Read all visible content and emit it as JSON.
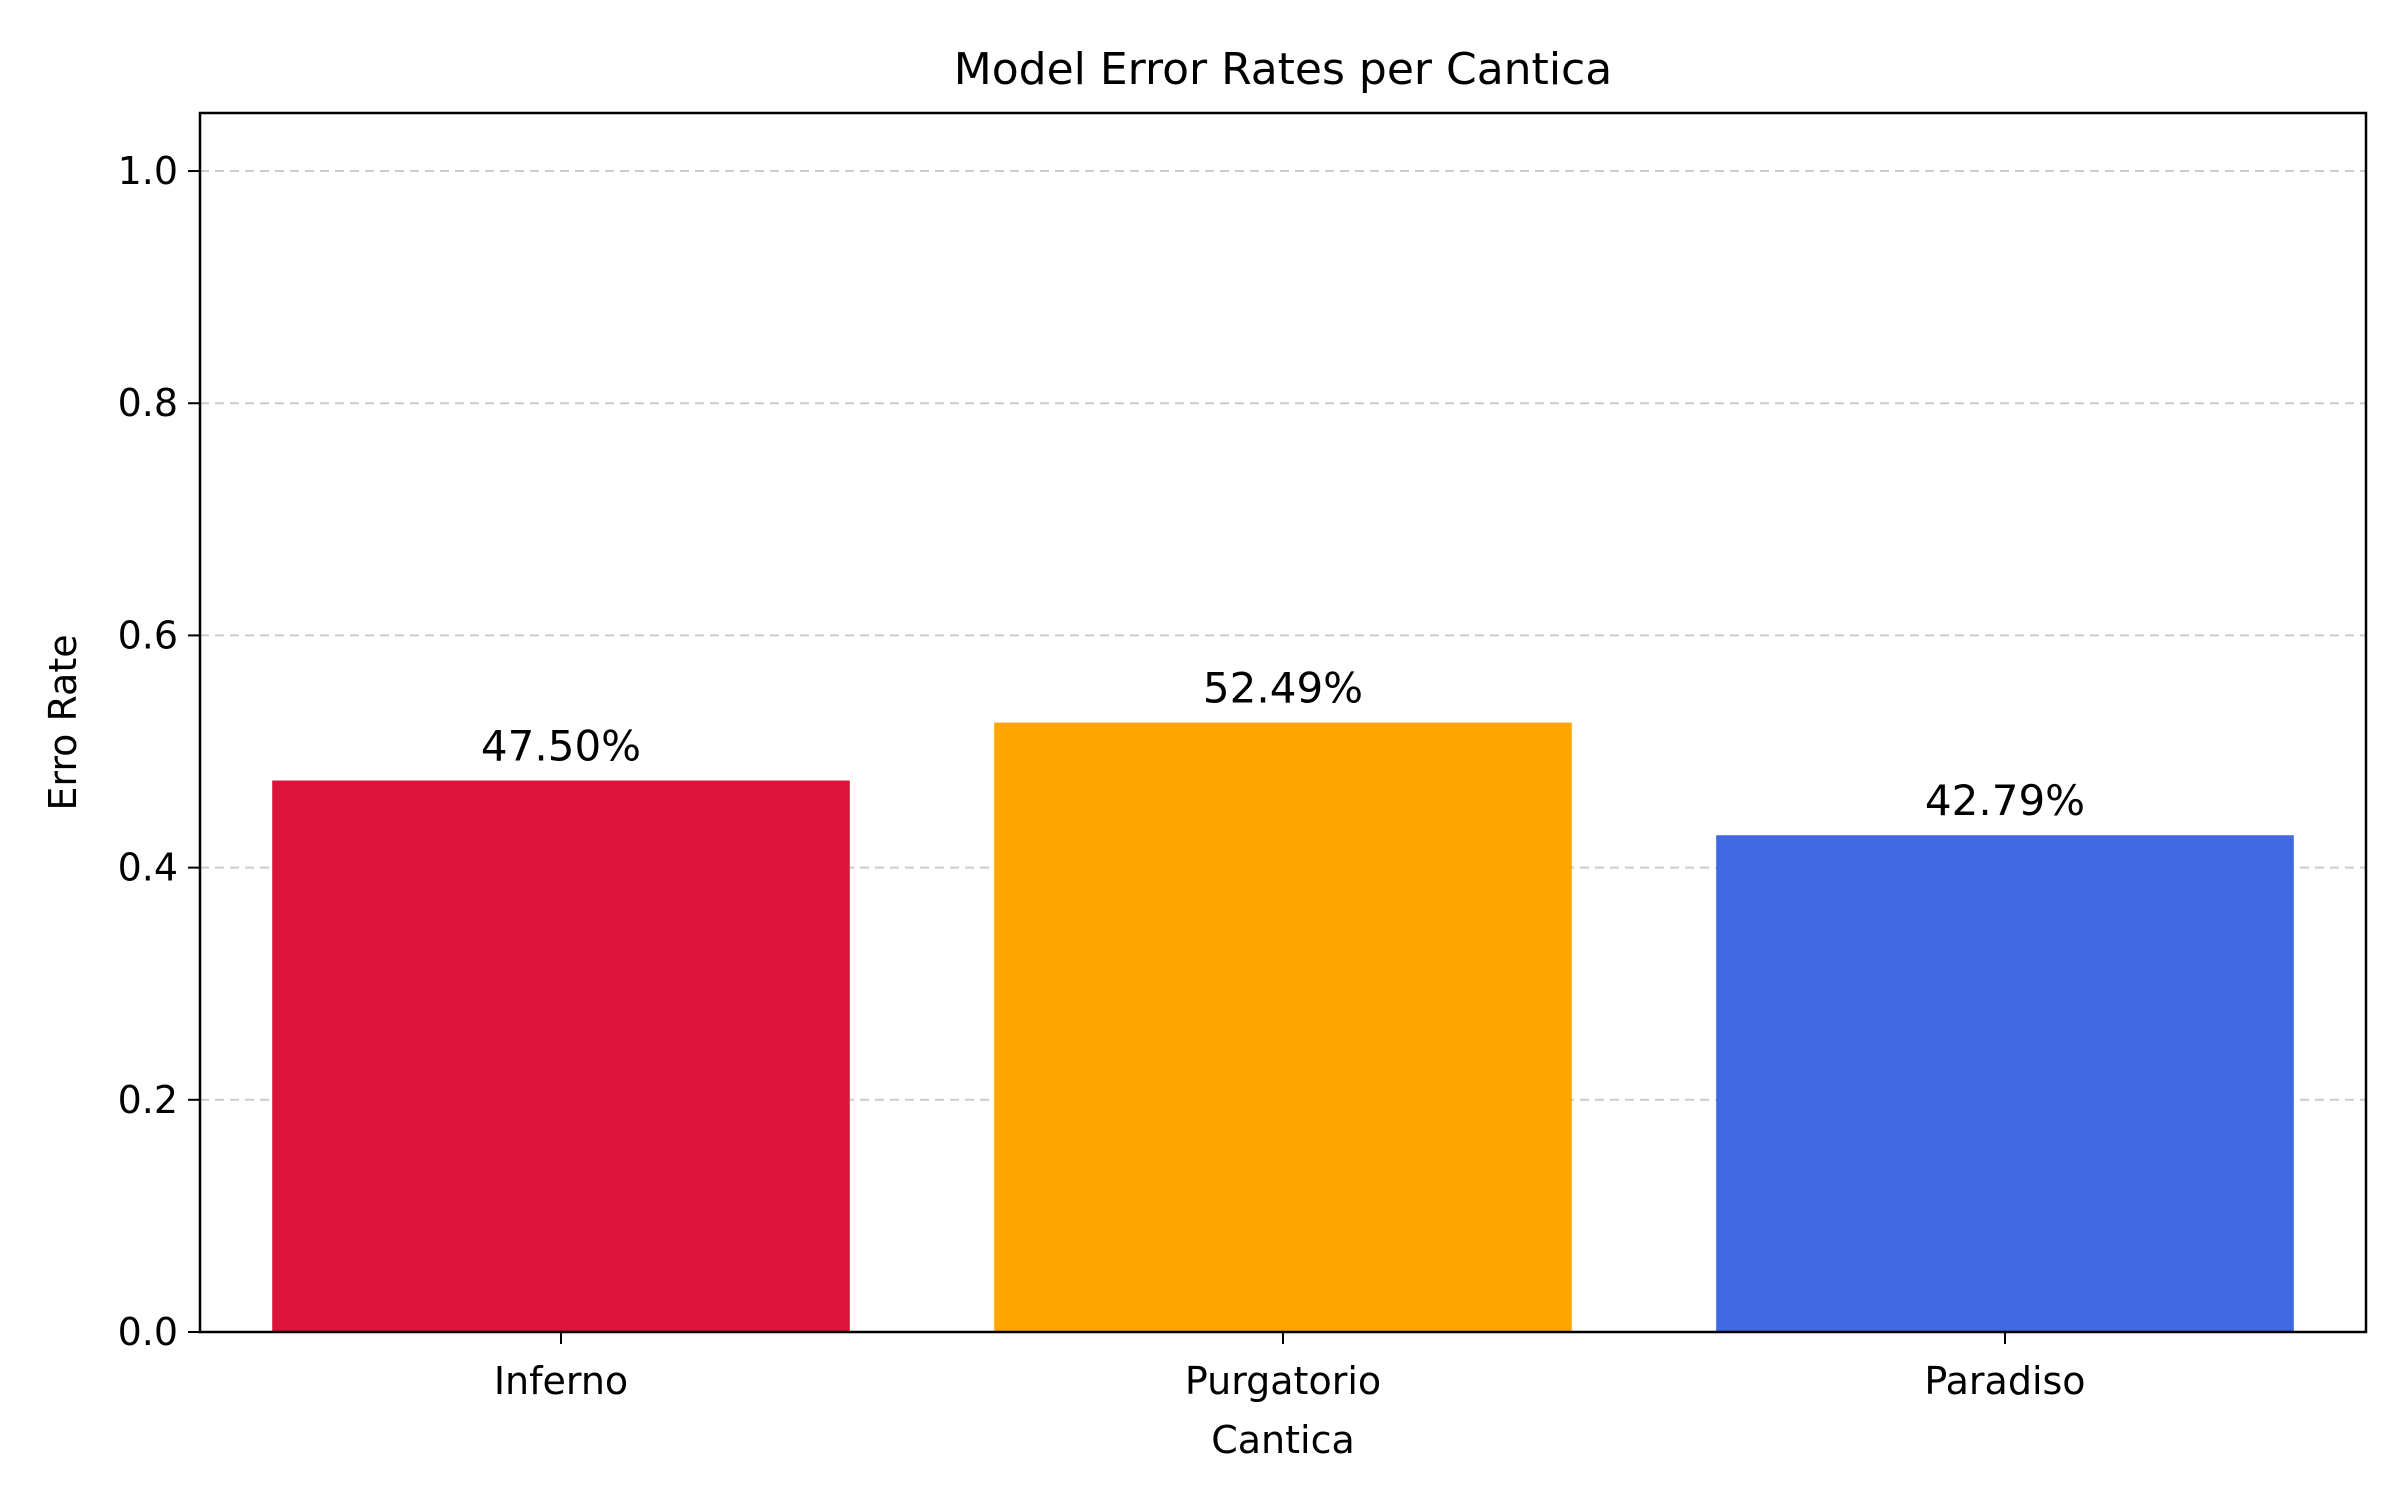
{
  "chart_data": {
    "type": "bar",
    "title": "Model Error Rates per Cantica",
    "xlabel": "Cantica",
    "ylabel": "Erro Rate",
    "categories": [
      "Inferno",
      "Purgatorio",
      "Paradiso"
    ],
    "values": [
      0.475,
      0.5249,
      0.4279
    ],
    "data_labels": [
      "47.50%",
      "52.49%",
      "42.79%"
    ],
    "colors": [
      "#dc143c",
      "#ffa500",
      "#4169e1"
    ],
    "ylim": [
      0,
      1.05
    ],
    "yticks": [
      0.0,
      0.2,
      0.4,
      0.6,
      0.8,
      1.0
    ],
    "ytick_labels": [
      "0.0",
      "0.2",
      "0.4",
      "0.6",
      "0.8",
      "1.0"
    ],
    "grid": "y-dashed",
    "legend": "none"
  }
}
